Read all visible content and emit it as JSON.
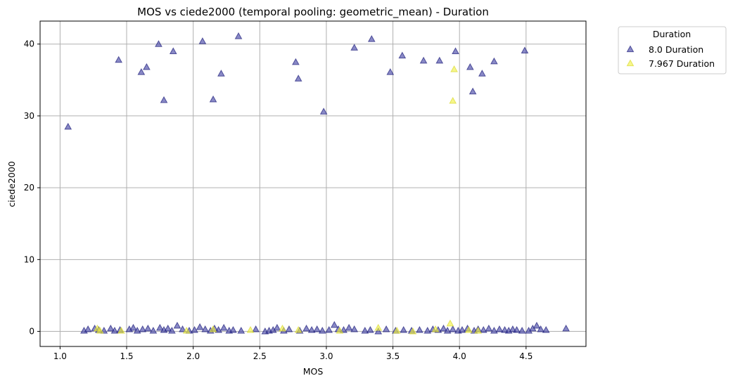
{
  "chart_data": {
    "type": "scatter",
    "title": "MOS vs ciede2000 (temporal pooling: geometric_mean) - Duration",
    "xlabel": "MOS",
    "ylabel": "ciede2000",
    "xlim": [
      0.85,
      4.95
    ],
    "ylim": [
      -2.1,
      43.2
    ],
    "xticks": [
      1.0,
      1.5,
      2.0,
      2.5,
      3.0,
      3.5,
      4.0,
      4.5
    ],
    "yticks": [
      0,
      10,
      20,
      30,
      40
    ],
    "grid": true,
    "marker": "triangle",
    "legend": {
      "title": "Duration",
      "placement": "outside-top-right"
    },
    "series": [
      {
        "name": "8.0 Duration",
        "color": "#3b3aa0",
        "points": [
          [
            1.06,
            28.5
          ],
          [
            1.44,
            37.8
          ],
          [
            1.61,
            36.1
          ],
          [
            1.65,
            36.8
          ],
          [
            1.74,
            40.0
          ],
          [
            1.78,
            32.2
          ],
          [
            1.85,
            39.0
          ],
          [
            2.07,
            40.4
          ],
          [
            2.15,
            32.3
          ],
          [
            2.21,
            35.9
          ],
          [
            2.34,
            41.1
          ],
          [
            2.77,
            37.5
          ],
          [
            2.79,
            35.2
          ],
          [
            2.98,
            30.6
          ],
          [
            3.21,
            39.5
          ],
          [
            3.34,
            40.7
          ],
          [
            3.48,
            36.1
          ],
          [
            3.57,
            38.4
          ],
          [
            3.73,
            37.7
          ],
          [
            3.85,
            37.7
          ],
          [
            3.97,
            39.0
          ],
          [
            4.08,
            36.8
          ],
          [
            4.1,
            33.4
          ],
          [
            4.17,
            35.9
          ],
          [
            4.26,
            37.6
          ],
          [
            4.49,
            39.1
          ],
          [
            1.18,
            0.1
          ],
          [
            1.21,
            0.3
          ],
          [
            1.26,
            0.4
          ],
          [
            1.29,
            0.2
          ],
          [
            1.33,
            0.1
          ],
          [
            1.38,
            0.4
          ],
          [
            1.41,
            0.1
          ],
          [
            1.45,
            0.2
          ],
          [
            1.52,
            0.3
          ],
          [
            1.55,
            0.5
          ],
          [
            1.58,
            0.1
          ],
          [
            1.62,
            0.3
          ],
          [
            1.66,
            0.4
          ],
          [
            1.7,
            0.1
          ],
          [
            1.75,
            0.5
          ],
          [
            1.78,
            0.2
          ],
          [
            1.81,
            0.4
          ],
          [
            1.84,
            0.1
          ],
          [
            1.88,
            0.8
          ],
          [
            1.92,
            0.3
          ],
          [
            1.97,
            0.1
          ],
          [
            2.01,
            0.2
          ],
          [
            2.05,
            0.6
          ],
          [
            2.09,
            0.3
          ],
          [
            2.13,
            0.1
          ],
          [
            2.16,
            0.4
          ],
          [
            2.19,
            0.2
          ],
          [
            2.23,
            0.5
          ],
          [
            2.27,
            0.1
          ],
          [
            2.3,
            0.2
          ],
          [
            2.36,
            0.1
          ],
          [
            2.47,
            0.3
          ],
          [
            2.54,
            0.0
          ],
          [
            2.57,
            0.1
          ],
          [
            2.6,
            0.2
          ],
          [
            2.63,
            0.5
          ],
          [
            2.68,
            0.1
          ],
          [
            2.72,
            0.3
          ],
          [
            2.8,
            0.1
          ],
          [
            2.85,
            0.4
          ],
          [
            2.89,
            0.2
          ],
          [
            2.93,
            0.3
          ],
          [
            2.97,
            0.1
          ],
          [
            3.02,
            0.2
          ],
          [
            3.06,
            0.9
          ],
          [
            3.09,
            0.3
          ],
          [
            3.13,
            0.2
          ],
          [
            3.17,
            0.5
          ],
          [
            3.21,
            0.3
          ],
          [
            3.29,
            0.1
          ],
          [
            3.33,
            0.2
          ],
          [
            3.39,
            0.0
          ],
          [
            3.45,
            0.3
          ],
          [
            3.52,
            0.1
          ],
          [
            3.58,
            0.2
          ],
          [
            3.64,
            0.1
          ],
          [
            3.7,
            0.2
          ],
          [
            3.76,
            0.1
          ],
          [
            3.8,
            0.3
          ],
          [
            3.84,
            0.2
          ],
          [
            3.88,
            0.4
          ],
          [
            3.91,
            0.1
          ],
          [
            3.95,
            0.3
          ],
          [
            3.99,
            0.1
          ],
          [
            4.02,
            0.2
          ],
          [
            4.06,
            0.4
          ],
          [
            4.11,
            0.1
          ],
          [
            4.14,
            0.3
          ],
          [
            4.18,
            0.2
          ],
          [
            4.22,
            0.4
          ],
          [
            4.26,
            0.1
          ],
          [
            4.3,
            0.3
          ],
          [
            4.34,
            0.2
          ],
          [
            4.37,
            0.1
          ],
          [
            4.4,
            0.3
          ],
          [
            4.43,
            0.2
          ],
          [
            4.47,
            0.1
          ],
          [
            4.52,
            0.1
          ],
          [
            4.55,
            0.4
          ],
          [
            4.58,
            0.8
          ],
          [
            4.61,
            0.3
          ],
          [
            4.65,
            0.2
          ],
          [
            4.8,
            0.4
          ]
        ]
      },
      {
        "name": "7.967 Duration",
        "color": "#f0f03c",
        "points": [
          [
            3.96,
            36.5
          ],
          [
            3.95,
            32.1
          ],
          [
            1.28,
            0.4
          ],
          [
            1.3,
            0.1
          ],
          [
            1.46,
            0.1
          ],
          [
            2.15,
            0.3
          ],
          [
            2.43,
            0.2
          ],
          [
            2.67,
            0.4
          ],
          [
            2.79,
            0.2
          ],
          [
            3.1,
            0.1
          ],
          [
            3.39,
            0.5
          ],
          [
            3.53,
            0.1
          ],
          [
            3.82,
            0.3
          ],
          [
            3.93,
            1.1
          ],
          [
            4.07,
            0.2
          ],
          [
            4.14,
            0.1
          ],
          [
            1.95,
            0.1
          ],
          [
            3.65,
            0.0
          ]
        ]
      }
    ]
  }
}
